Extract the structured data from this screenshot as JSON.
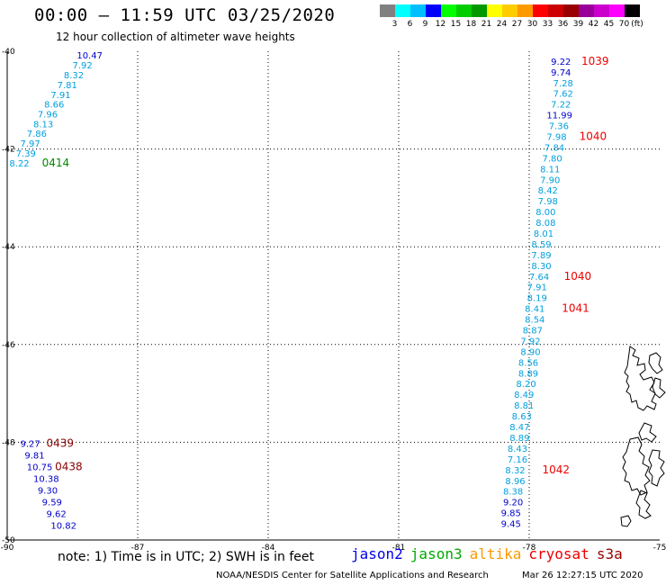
{
  "header": {
    "title": "00:00 – 11:59 UTC 03/25/2020",
    "subtitle": "12 hour collection of altimeter wave heights"
  },
  "colorbar": {
    "unit": "(ft)",
    "bins": [
      {
        "color": "#808080",
        "label": "3"
      },
      {
        "color": "#00ffff",
        "label": "6"
      },
      {
        "color": "#00bfff",
        "label": "9"
      },
      {
        "color": "#0000ff",
        "label": "12"
      },
      {
        "color": "#00ff00",
        "label": "15"
      },
      {
        "color": "#00cc00",
        "label": "18"
      },
      {
        "color": "#009900",
        "label": "21"
      },
      {
        "color": "#ffff00",
        "label": "24"
      },
      {
        "color": "#ffcc00",
        "label": "27"
      },
      {
        "color": "#ff9900",
        "label": "30"
      },
      {
        "color": "#ff0000",
        "label": "33"
      },
      {
        "color": "#cc0000",
        "label": "36"
      },
      {
        "color": "#990000",
        "label": "39"
      },
      {
        "color": "#990099",
        "label": "42"
      },
      {
        "color": "#cc00cc",
        "label": "45"
      },
      {
        "color": "#ff00ff",
        "label": "70"
      },
      {
        "color": "#000000",
        "label": ""
      }
    ]
  },
  "map": {
    "lon_range": [
      -90,
      -75
    ],
    "lat_range": [
      -50,
      -40
    ],
    "lon_ticks": [
      {
        "v": -90,
        "label": "-90"
      },
      {
        "v": -87,
        "label": "-87"
      },
      {
        "v": -84,
        "label": "-84"
      },
      {
        "v": -81,
        "label": "-81"
      },
      {
        "v": -78,
        "label": "-78"
      },
      {
        "v": -75,
        "label": "-75"
      }
    ],
    "lat_ticks": [
      {
        "v": -40,
        "label": "-40"
      },
      {
        "v": -42,
        "label": "-42"
      },
      {
        "v": -44,
        "label": "-44"
      },
      {
        "v": -46,
        "label": "-46"
      },
      {
        "v": -48,
        "label": "-48"
      },
      {
        "v": -50,
        "label": "-50"
      }
    ],
    "tracks": [
      {
        "points": [
          {
            "lon": -88.4,
            "lat": -40.07,
            "swh": "10.47",
            "color": "#0000cc"
          },
          {
            "lon": -88.5,
            "lat": -40.28,
            "swh": "7.92",
            "color": "#00a0dd"
          },
          {
            "lon": -88.7,
            "lat": -40.48,
            "swh": "8.32",
            "color": "#00a0dd"
          },
          {
            "lon": -88.85,
            "lat": -40.68,
            "swh": "7.81",
            "color": "#00a0dd"
          },
          {
            "lon": -89.0,
            "lat": -40.88,
            "swh": "7.91",
            "color": "#00a0dd"
          },
          {
            "lon": -89.15,
            "lat": -41.08,
            "swh": "8.66",
            "color": "#00a0dd"
          },
          {
            "lon": -89.3,
            "lat": -41.28,
            "swh": "7.96",
            "color": "#00a0dd"
          },
          {
            "lon": -89.4,
            "lat": -41.48,
            "swh": "8.13",
            "color": "#00a0dd"
          },
          {
            "lon": -89.55,
            "lat": -41.68,
            "swh": "7.86",
            "color": "#00a0dd"
          },
          {
            "lon": -89.7,
            "lat": -41.88,
            "swh": "7.97",
            "color": "#00a0dd"
          },
          {
            "lon": -89.8,
            "lat": -42.08,
            "swh": "7.39",
            "color": "#00a0dd"
          },
          {
            "lon": -89.95,
            "lat": -42.28,
            "swh": "8.22",
            "color": "#00a0dd"
          }
        ],
        "labels": [
          {
            "lon": -89.2,
            "lat": -42.28,
            "text": "0414",
            "color": "#008800"
          }
        ]
      },
      {
        "points": [
          {
            "lon": -77.5,
            "lat": -40.2,
            "swh": "9.22",
            "color": "#0000cc"
          },
          {
            "lon": -77.5,
            "lat": -40.42,
            "swh": "9.74",
            "color": "#0000cc"
          },
          {
            "lon": -77.45,
            "lat": -40.64,
            "swh": "7.28",
            "color": "#00a0dd"
          },
          {
            "lon": -77.45,
            "lat": -40.86,
            "swh": "7.62",
            "color": "#00a0dd"
          },
          {
            "lon": -77.5,
            "lat": -41.08,
            "swh": "7.22",
            "color": "#00a0dd"
          },
          {
            "lon": -77.6,
            "lat": -41.3,
            "swh": "11.99",
            "color": "#0000cc"
          },
          {
            "lon": -77.55,
            "lat": -41.52,
            "swh": "7.36",
            "color": "#00a0dd"
          },
          {
            "lon": -77.6,
            "lat": -41.74,
            "swh": "7.98",
            "color": "#00a0dd"
          },
          {
            "lon": -77.65,
            "lat": -41.96,
            "swh": "7.84",
            "color": "#00a0dd"
          },
          {
            "lon": -77.7,
            "lat": -42.18,
            "swh": "7.80",
            "color": "#00a0dd"
          },
          {
            "lon": -77.75,
            "lat": -42.4,
            "swh": "8.11",
            "color": "#00a0dd"
          },
          {
            "lon": -77.75,
            "lat": -42.62,
            "swh": "7.90",
            "color": "#00a0dd"
          },
          {
            "lon": -77.8,
            "lat": -42.84,
            "swh": "8.42",
            "color": "#00a0dd"
          },
          {
            "lon": -77.8,
            "lat": -43.06,
            "swh": "7.98",
            "color": "#00a0dd"
          },
          {
            "lon": -77.85,
            "lat": -43.28,
            "swh": "8.00",
            "color": "#00a0dd"
          },
          {
            "lon": -77.85,
            "lat": -43.5,
            "swh": "8.08",
            "color": "#00a0dd"
          },
          {
            "lon": -77.9,
            "lat": -43.72,
            "swh": "8.01",
            "color": "#00a0dd"
          },
          {
            "lon": -77.95,
            "lat": -43.94,
            "swh": "8.59",
            "color": "#00a0dd"
          },
          {
            "lon": -77.95,
            "lat": -44.16,
            "swh": "7.89",
            "color": "#00a0dd"
          },
          {
            "lon": -77.95,
            "lat": -44.38,
            "swh": "8.30",
            "color": "#00a0dd"
          },
          {
            "lon": -78.0,
            "lat": -44.6,
            "swh": "7.64",
            "color": "#00a0dd"
          },
          {
            "lon": -78.05,
            "lat": -44.82,
            "swh": "7.91",
            "color": "#00a0dd"
          },
          {
            "lon": -78.05,
            "lat": -45.04,
            "swh": "8.19",
            "color": "#00a0dd"
          },
          {
            "lon": -78.1,
            "lat": -45.26,
            "swh": "8.41",
            "color": "#00a0dd"
          },
          {
            "lon": -78.1,
            "lat": -45.48,
            "swh": "8.54",
            "color": "#00a0dd"
          },
          {
            "lon": -78.15,
            "lat": -45.7,
            "swh": "8.87",
            "color": "#00a0dd"
          },
          {
            "lon": -78.2,
            "lat": -45.92,
            "swh": "7.92",
            "color": "#00a0dd"
          },
          {
            "lon": -78.2,
            "lat": -46.14,
            "swh": "8.90",
            "color": "#00a0dd"
          },
          {
            "lon": -78.25,
            "lat": -46.36,
            "swh": "8.56",
            "color": "#00a0dd"
          },
          {
            "lon": -78.25,
            "lat": -46.58,
            "swh": "8.89",
            "color": "#00a0dd"
          },
          {
            "lon": -78.3,
            "lat": -46.8,
            "swh": "8.20",
            "color": "#00a0dd"
          },
          {
            "lon": -78.35,
            "lat": -47.02,
            "swh": "8.49",
            "color": "#00a0dd"
          },
          {
            "lon": -78.35,
            "lat": -47.24,
            "swh": "8.81",
            "color": "#00a0dd"
          },
          {
            "lon": -78.4,
            "lat": -47.46,
            "swh": "8.63",
            "color": "#00a0dd"
          },
          {
            "lon": -78.45,
            "lat": -47.68,
            "swh": "8.47",
            "color": "#00a0dd"
          },
          {
            "lon": -78.45,
            "lat": -47.9,
            "swh": "8.89",
            "color": "#00a0dd"
          },
          {
            "lon": -78.5,
            "lat": -48.12,
            "swh": "8.43",
            "color": "#00a0dd"
          },
          {
            "lon": -78.5,
            "lat": -48.34,
            "swh": "7.16",
            "color": "#00a0dd"
          },
          {
            "lon": -78.55,
            "lat": -48.56,
            "swh": "8.32",
            "color": "#00a0dd"
          },
          {
            "lon": -78.55,
            "lat": -48.78,
            "swh": "8.96",
            "color": "#00a0dd"
          },
          {
            "lon": -78.6,
            "lat": -49.0,
            "swh": "8.38",
            "color": "#00a0dd"
          },
          {
            "lon": -78.6,
            "lat": -49.22,
            "swh": "9.20",
            "color": "#0000cc"
          },
          {
            "lon": -78.65,
            "lat": -49.44,
            "swh": "9.85",
            "color": "#0000cc"
          },
          {
            "lon": -78.65,
            "lat": -49.66,
            "swh": "9.45",
            "color": "#0000cc"
          }
        ],
        "labels": [
          {
            "lon": -76.8,
            "lat": -40.2,
            "text": "1039",
            "color": "#ee0000"
          },
          {
            "lon": -76.85,
            "lat": -41.74,
            "text": "1040",
            "color": "#ee0000"
          },
          {
            "lon": -77.2,
            "lat": -44.6,
            "text": "1040",
            "color": "#ee0000"
          },
          {
            "lon": -77.25,
            "lat": -45.26,
            "text": "1041",
            "color": "#ee0000"
          },
          {
            "lon": -77.7,
            "lat": -48.56,
            "text": "1042",
            "color": "#ee0000"
          }
        ]
      },
      {
        "points": [
          {
            "lon": -89.7,
            "lat": -48.02,
            "swh": "9.27",
            "color": "#0000cc"
          },
          {
            "lon": -89.6,
            "lat": -48.26,
            "swh": "9.81",
            "color": "#0000cc"
          },
          {
            "lon": -89.55,
            "lat": -48.5,
            "swh": "10.75",
            "color": "#0000cc"
          },
          {
            "lon": -89.4,
            "lat": -48.74,
            "swh": "10.38",
            "color": "#0000cc"
          },
          {
            "lon": -89.3,
            "lat": -48.98,
            "swh": "9.30",
            "color": "#0000cc"
          },
          {
            "lon": -89.2,
            "lat": -49.22,
            "swh": "9.59",
            "color": "#0000cc"
          },
          {
            "lon": -89.1,
            "lat": -49.46,
            "swh": "9.62",
            "color": "#0000cc"
          },
          {
            "lon": -89.0,
            "lat": -49.7,
            "swh": "10.82",
            "color": "#0000cc"
          }
        ],
        "labels": [
          {
            "lon": -89.1,
            "lat": -48.02,
            "text": "0439",
            "color": "#880000"
          },
          {
            "lon": -88.9,
            "lat": -48.5,
            "text": "0438",
            "color": "#880000"
          }
        ]
      }
    ]
  },
  "footer": {
    "note": "note:  1) Time is in UTC;  2) SWH is in feet",
    "missions": [
      {
        "name": "jason2",
        "color": "#0000ee"
      },
      {
        "name": "jason3",
        "color": "#00aa00"
      },
      {
        "name": "altika",
        "color": "#ff9900"
      },
      {
        "name": "cryosat",
        "color": "#ee0000"
      },
      {
        "name": "s3a",
        "color": "#990000"
      }
    ],
    "credit": "NOAA/NESDIS Center for Satellite Applications and Research",
    "timestamp": "Mar 26 12:27:15 UTC 2020"
  }
}
